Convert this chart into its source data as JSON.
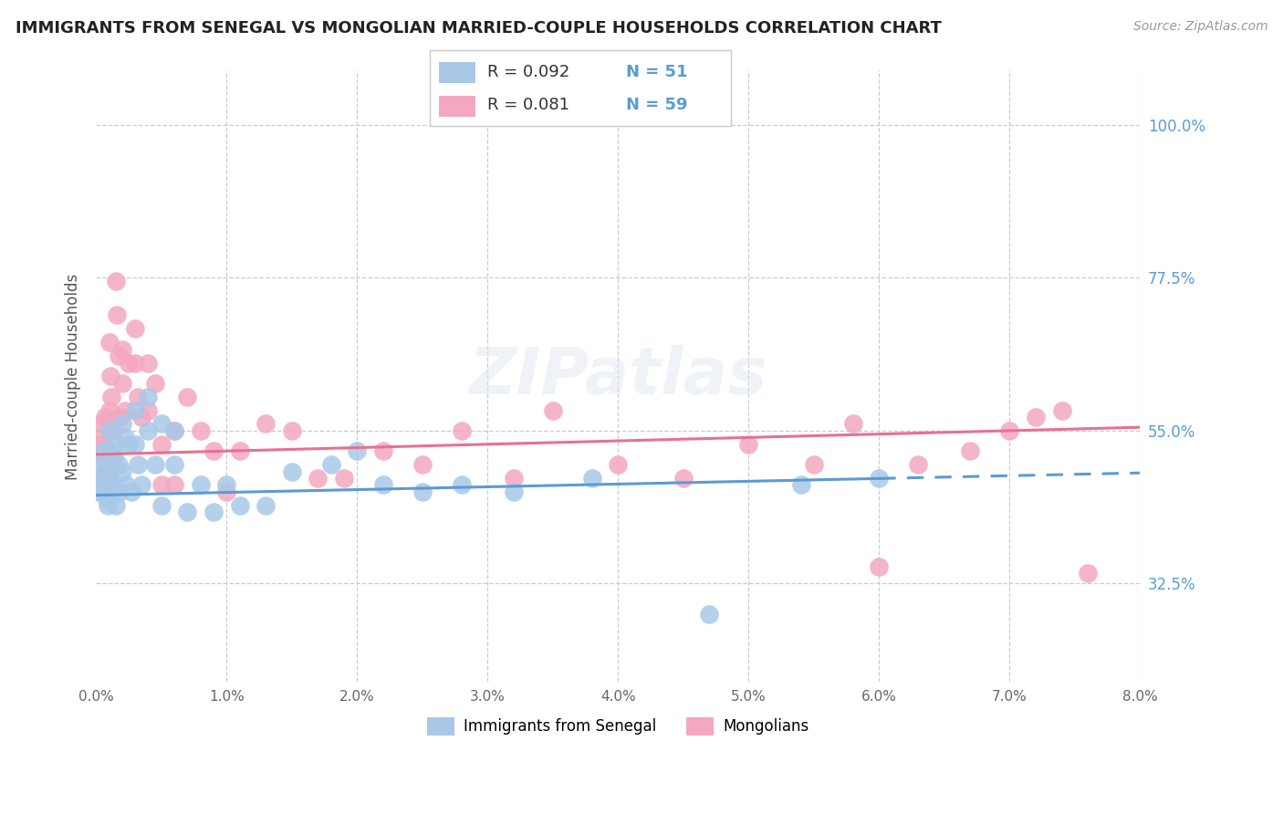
{
  "title": "IMMIGRANTS FROM SENEGAL VS MONGOLIAN MARRIED-COUPLE HOUSEHOLDS CORRELATION CHART",
  "source": "Source: ZipAtlas.com",
  "ylabel": "Married-couple Households",
  "legend_blue_r": "R = 0.092",
  "legend_blue_n": "N = 51",
  "legend_pink_r": "R = 0.081",
  "legend_pink_n": "N = 59",
  "legend_label_blue": "Immigrants from Senegal",
  "legend_label_pink": "Mongolians",
  "blue_color": "#a8c8e8",
  "pink_color": "#f4a8c0",
  "blue_line_color": "#5b9bd5",
  "pink_line_color": "#e87090",
  "xmin": 0.0,
  "xmax": 0.08,
  "ymin": 0.18,
  "ymax": 1.08,
  "ytick_vals": [
    1.0,
    0.775,
    0.55,
    0.325
  ],
  "ytick_labels": [
    "100.0%",
    "77.5%",
    "55.0%",
    "32.5%"
  ],
  "xtick_vals": [
    0.0,
    0.01,
    0.02,
    0.03,
    0.04,
    0.05,
    0.06,
    0.07,
    0.08
  ],
  "xtick_labels": [
    "0.0%",
    "1.0%",
    "2.0%",
    "3.0%",
    "4.0%",
    "5.0%",
    "6.0%",
    "7.0%",
    "8.0%"
  ],
  "blue_x": [
    0.0002,
    0.0003,
    0.0004,
    0.0005,
    0.0006,
    0.0007,
    0.0008,
    0.0009,
    0.001,
    0.001,
    0.0012,
    0.0013,
    0.0014,
    0.0015,
    0.0016,
    0.0017,
    0.0018,
    0.002,
    0.002,
    0.0022,
    0.0023,
    0.0025,
    0.0027,
    0.003,
    0.003,
    0.0032,
    0.0035,
    0.004,
    0.004,
    0.0045,
    0.005,
    0.005,
    0.006,
    0.006,
    0.007,
    0.008,
    0.009,
    0.01,
    0.011,
    0.013,
    0.015,
    0.018,
    0.02,
    0.022,
    0.025,
    0.028,
    0.032,
    0.038,
    0.047,
    0.054,
    0.06
  ],
  "blue_y": [
    0.46,
    0.47,
    0.5,
    0.48,
    0.52,
    0.49,
    0.45,
    0.44,
    0.55,
    0.48,
    0.52,
    0.47,
    0.51,
    0.44,
    0.53,
    0.5,
    0.46,
    0.56,
    0.49,
    0.54,
    0.47,
    0.53,
    0.46,
    0.58,
    0.53,
    0.5,
    0.47,
    0.6,
    0.55,
    0.5,
    0.56,
    0.44,
    0.55,
    0.5,
    0.43,
    0.47,
    0.43,
    0.47,
    0.44,
    0.44,
    0.49,
    0.5,
    0.52,
    0.47,
    0.46,
    0.47,
    0.46,
    0.48,
    0.28,
    0.47,
    0.48
  ],
  "pink_x": [
    0.0002,
    0.0003,
    0.0004,
    0.0005,
    0.0005,
    0.0006,
    0.0007,
    0.0008,
    0.0009,
    0.001,
    0.001,
    0.0011,
    0.0012,
    0.0013,
    0.0015,
    0.0016,
    0.0017,
    0.0018,
    0.002,
    0.002,
    0.0022,
    0.0025,
    0.003,
    0.003,
    0.0032,
    0.0035,
    0.004,
    0.004,
    0.0045,
    0.005,
    0.005,
    0.006,
    0.006,
    0.007,
    0.008,
    0.009,
    0.01,
    0.011,
    0.013,
    0.015,
    0.017,
    0.019,
    0.022,
    0.025,
    0.028,
    0.032,
    0.035,
    0.04,
    0.045,
    0.05,
    0.055,
    0.058,
    0.06,
    0.063,
    0.067,
    0.07,
    0.072,
    0.074,
    0.076
  ],
  "pink_y": [
    0.53,
    0.52,
    0.56,
    0.54,
    0.48,
    0.51,
    0.57,
    0.5,
    0.47,
    0.68,
    0.58,
    0.63,
    0.6,
    0.55,
    0.77,
    0.72,
    0.66,
    0.57,
    0.67,
    0.62,
    0.58,
    0.65,
    0.7,
    0.65,
    0.6,
    0.57,
    0.65,
    0.58,
    0.62,
    0.53,
    0.47,
    0.55,
    0.47,
    0.6,
    0.55,
    0.52,
    0.46,
    0.52,
    0.56,
    0.55,
    0.48,
    0.48,
    0.52,
    0.5,
    0.55,
    0.48,
    0.58,
    0.5,
    0.48,
    0.53,
    0.5,
    0.56,
    0.35,
    0.5,
    0.52,
    0.55,
    0.57,
    0.58,
    0.34
  ],
  "blue_line_x0": 0.0,
  "blue_line_x_solid_end": 0.06,
  "blue_line_xmax": 0.08,
  "pink_line_x0": 0.0,
  "pink_line_xmax": 0.08
}
